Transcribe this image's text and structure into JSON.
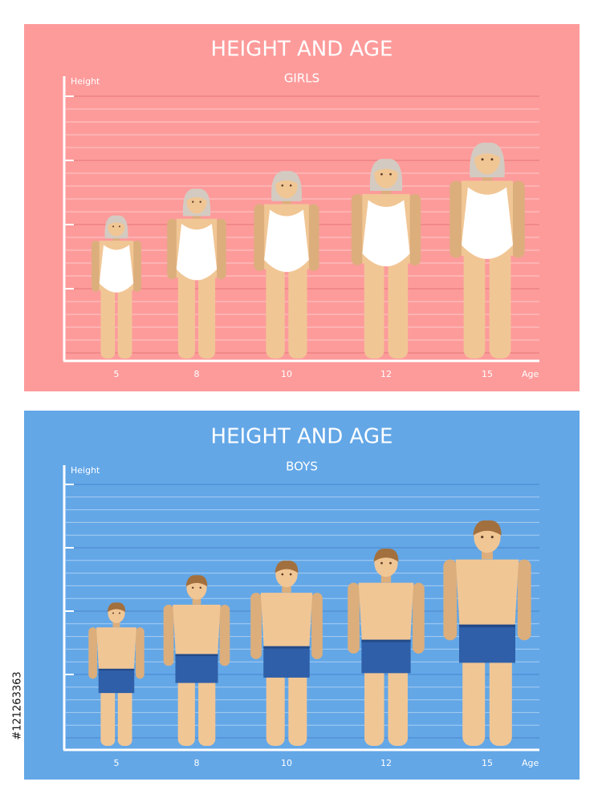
{
  "panels": [
    {
      "title": "HEIGHT AND AGE",
      "subtitle": "GIRLS",
      "y_axis_label": "Height",
      "x_axis_label": "Age",
      "ages": [
        5,
        8,
        10,
        12,
        15
      ]
    },
    {
      "title": "HEIGHT AND AGE",
      "subtitle": "BOYS",
      "y_axis_label": "Height",
      "x_axis_label": "Age",
      "ages": [
        5,
        8,
        10,
        12,
        15
      ]
    }
  ],
  "side_id": "#121263363"
}
